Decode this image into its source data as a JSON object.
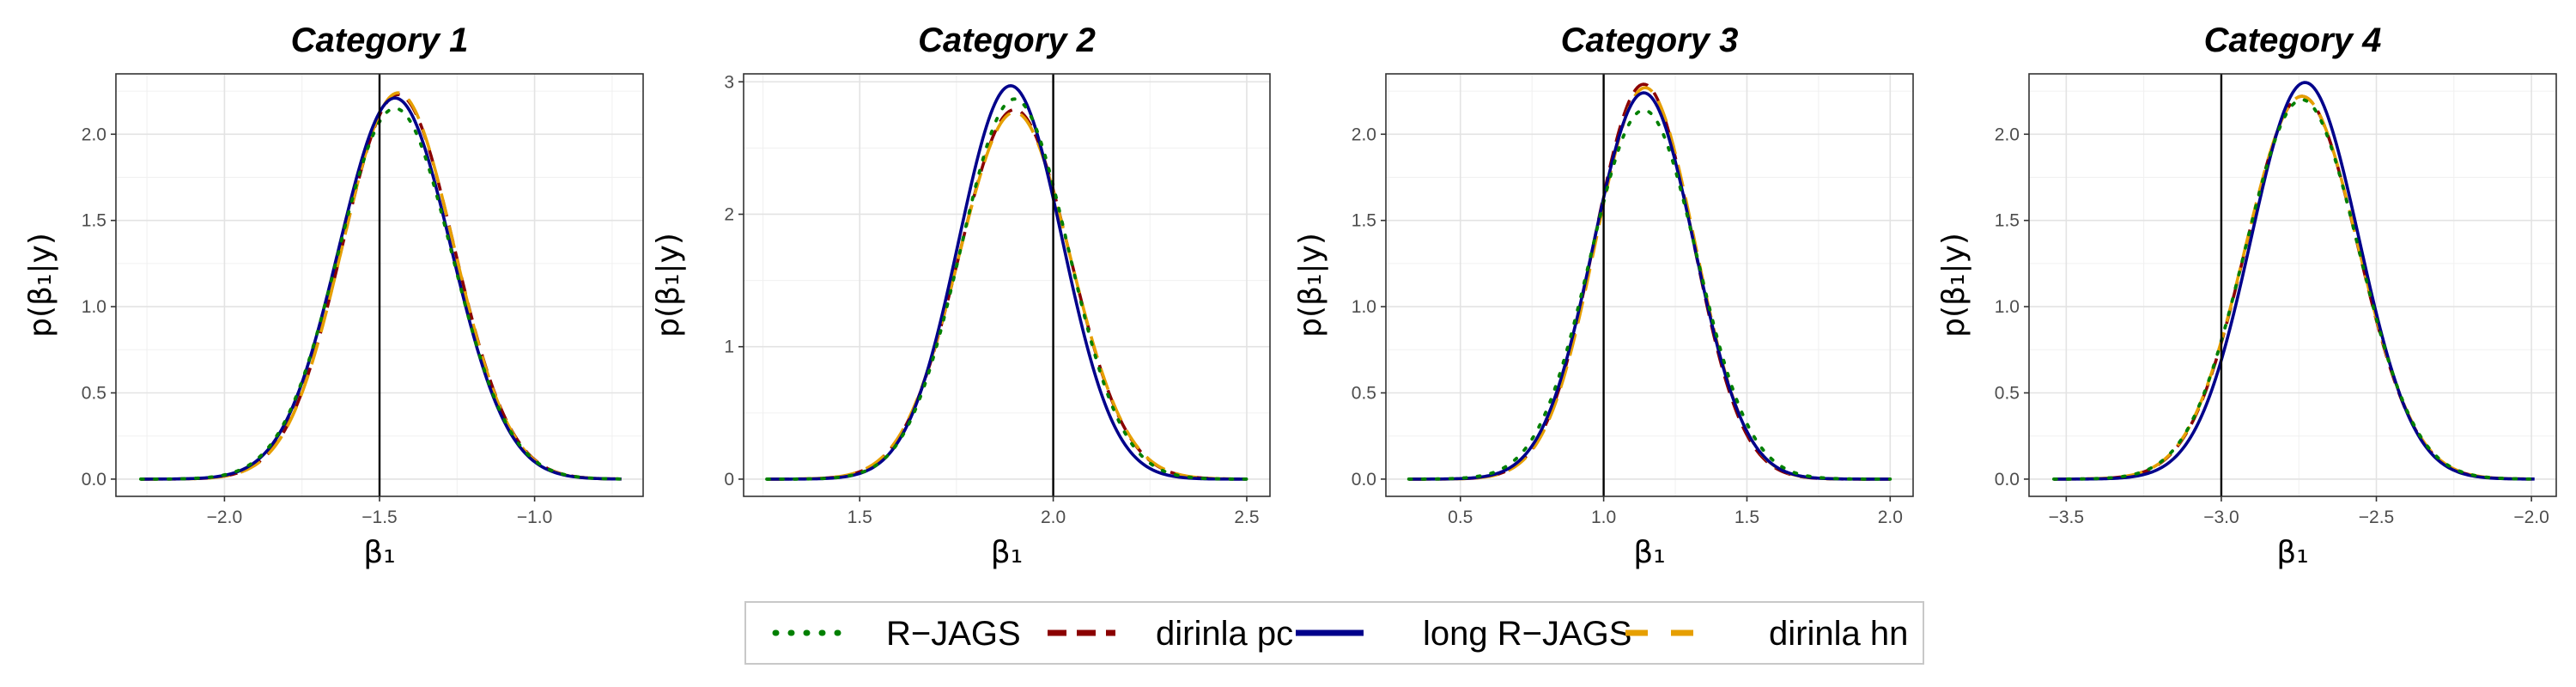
{
  "chart_data": [
    {
      "type": "line",
      "title": "Category 1",
      "xlabel": "β₁",
      "ylabel": "p(β₁|y)",
      "xlim": [
        -2.35,
        -0.65
      ],
      "ylim": [
        -0.1,
        2.35
      ],
      "xticks": [
        -2.0,
        -1.5,
        -1.0
      ],
      "xtick_labels": [
        "−2.0",
        "−1.5",
        "−1.0"
      ],
      "yticks": [
        0.0,
        0.5,
        1.0,
        1.5,
        2.0
      ],
      "ytick_labels": [
        "0.0",
        "0.5",
        "1.0",
        "1.5",
        "2.0"
      ],
      "reference_line_x": -1.5,
      "curve_range": [
        -2.27,
        -0.72
      ],
      "grid": true,
      "series": [
        {
          "name": "R−JAGS",
          "mean": -1.45,
          "sd": 0.184,
          "peak": 2.15
        },
        {
          "name": "dirinla pc",
          "mean": -1.44,
          "sd": 0.18,
          "peak": 2.23
        },
        {
          "name": "long R−JAGS",
          "mean": -1.45,
          "sd": 0.181,
          "peak": 2.21
        },
        {
          "name": "dirinla hn",
          "mean": -1.44,
          "sd": 0.179,
          "peak": 2.24
        }
      ]
    },
    {
      "type": "line",
      "title": "Category 2",
      "xlabel": "β₁",
      "ylabel": "p(β₁|y)",
      "xlim": [
        1.2,
        2.56
      ],
      "ylim": [
        -0.13,
        3.06
      ],
      "xticks": [
        1.5,
        2.0,
        2.5
      ],
      "xtick_labels": [
        "1.5",
        "2.0",
        "2.5"
      ],
      "yticks": [
        0,
        1,
        2,
        3
      ],
      "ytick_labels": [
        "0",
        "1",
        "2",
        "3"
      ],
      "reference_line_x": 2.0,
      "curve_range": [
        1.26,
        2.5
      ],
      "grid": true,
      "series": [
        {
          "name": "R−JAGS",
          "mean": 1.9,
          "sd": 0.139,
          "peak": 2.87
        },
        {
          "name": "dirinla pc",
          "mean": 1.9,
          "sd": 0.143,
          "peak": 2.79
        },
        {
          "name": "long R−JAGS",
          "mean": 1.89,
          "sd": 0.134,
          "peak": 2.97
        },
        {
          "name": "dirinla hn",
          "mean": 1.9,
          "sd": 0.144,
          "peak": 2.77
        }
      ]
    },
    {
      "type": "line",
      "title": "Category 3",
      "xlabel": "β₁",
      "ylabel": "p(β₁|y)",
      "xlim": [
        0.24,
        2.08
      ],
      "ylim": [
        -0.1,
        2.35
      ],
      "xticks": [
        0.5,
        1.0,
        1.5,
        2.0
      ],
      "xtick_labels": [
        "0.5",
        "1.0",
        "1.5",
        "2.0"
      ],
      "yticks": [
        0.0,
        0.5,
        1.0,
        1.5,
        2.0
      ],
      "ytick_labels": [
        "0.0",
        "0.5",
        "1.0",
        "1.5",
        "2.0"
      ],
      "reference_line_x": 1.0,
      "curve_range": [
        0.32,
        2.0
      ],
      "grid": true,
      "series": [
        {
          "name": "R−JAGS",
          "mean": 1.14,
          "sd": 0.185,
          "peak": 2.14
        },
        {
          "name": "dirinla pc",
          "mean": 1.14,
          "sd": 0.172,
          "peak": 2.29
        },
        {
          "name": "long R−JAGS",
          "mean": 1.14,
          "sd": 0.176,
          "peak": 2.24
        },
        {
          "name": "dirinla hn",
          "mean": 1.145,
          "sd": 0.173,
          "peak": 2.27
        }
      ]
    },
    {
      "type": "line",
      "title": "Category 4",
      "xlabel": "β₁",
      "ylabel": "p(β₁|y)",
      "xlim": [
        -3.62,
        -1.92
      ],
      "ylim": [
        -0.1,
        2.35
      ],
      "xticks": [
        -3.5,
        -3.0,
        -2.5,
        -2.0
      ],
      "xtick_labels": [
        "−3.5",
        "−3.0",
        "−2.5",
        "−2.0"
      ],
      "yticks": [
        0.0,
        0.5,
        1.0,
        1.5,
        2.0
      ],
      "ytick_labels": [
        "0.0",
        "0.5",
        "1.0",
        "1.5",
        "2.0"
      ],
      "reference_line_x": -3.0,
      "curve_range": [
        -3.54,
        -1.99
      ],
      "grid": true,
      "series": [
        {
          "name": "R−JAGS",
          "mean": -2.74,
          "sd": 0.183,
          "peak": 2.2
        },
        {
          "name": "dirinla pc",
          "mean": -2.74,
          "sd": 0.181,
          "peak": 2.22
        },
        {
          "name": "long R−JAGS",
          "mean": -2.73,
          "sd": 0.174,
          "peak": 2.3
        },
        {
          "name": "dirinla hn",
          "mean": -2.74,
          "sd": 0.182,
          "peak": 2.22
        }
      ]
    }
  ],
  "legend": {
    "placement": "bottom",
    "items": [
      {
        "label": "R−JAGS",
        "color": "#008000",
        "style": "dotted"
      },
      {
        "label": "dirinla pc",
        "color": "#8b0000",
        "style": "dashed"
      },
      {
        "label": "long R−JAGS",
        "color": "#00008b",
        "style": "solid"
      },
      {
        "label": "dirinla hn",
        "color": "#e69f00",
        "style": "longdash"
      }
    ]
  }
}
